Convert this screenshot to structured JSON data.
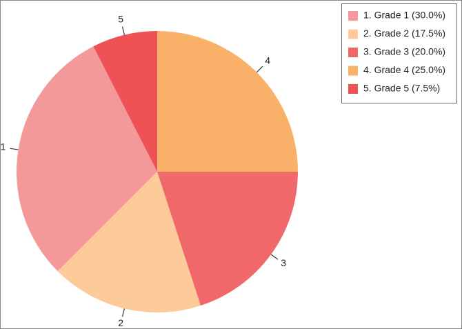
{
  "chart_data": {
    "type": "pie",
    "categories": [
      "1. Grade 1 (30.0%)",
      "2. Grade 2 (17.5%)",
      "3. Grade 3 (20.0%)",
      "4. Grade 4 (25.0%)",
      "5. Grade 5 (7.5%)"
    ],
    "slice_labels": [
      "1",
      "2",
      "3",
      "4",
      "5"
    ],
    "values": [
      30.0,
      17.5,
      20.0,
      25.0,
      7.5
    ],
    "colors": [
      "#f4999a",
      "#fdcb99",
      "#f0686a",
      "#f9b169",
      "#ef5254"
    ],
    "legend": "upper right"
  }
}
